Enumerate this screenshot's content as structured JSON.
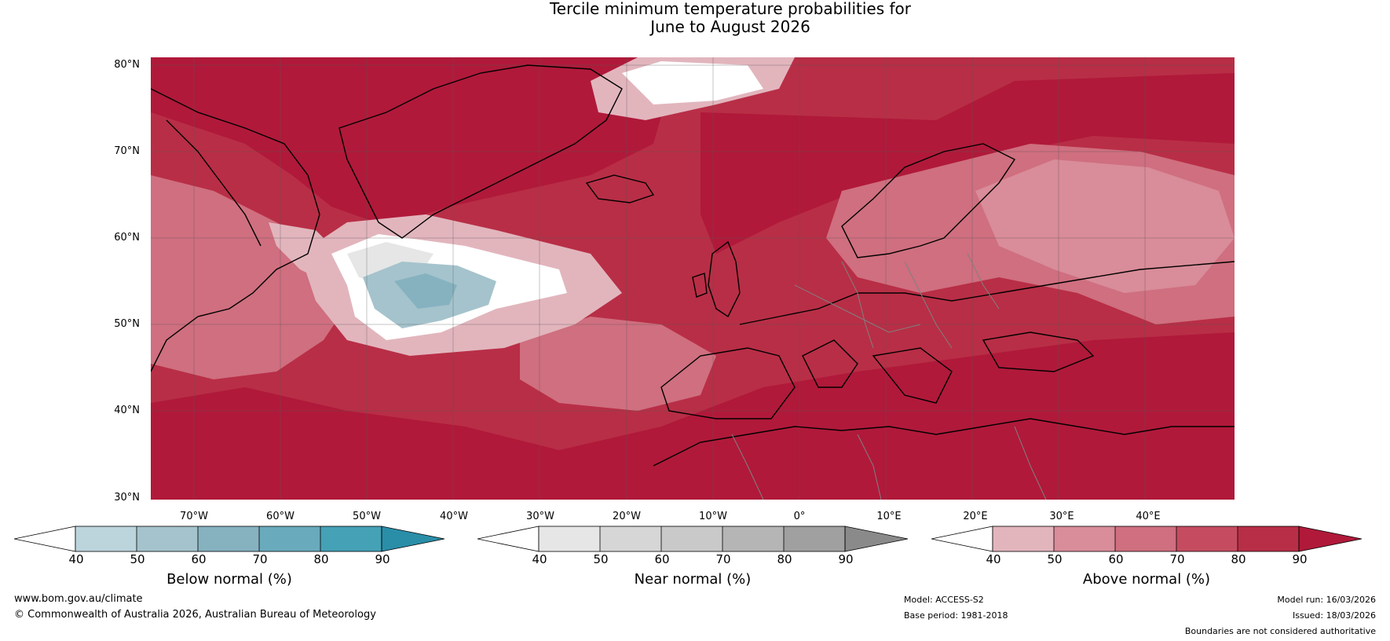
{
  "title": {
    "line1": "Tercile minimum temperature probabilities for",
    "line2": "June to August 2026"
  },
  "map": {
    "lat_labels": [
      "80°N",
      "70°N",
      "60°N",
      "50°N",
      "40°N",
      "30°N"
    ],
    "lon_labels": [
      "70°W",
      "60°W",
      "50°W",
      "40°W",
      "30°W",
      "20°W",
      "10°W",
      "0°",
      "10°E",
      "20°E",
      "30°E",
      "40°E"
    ],
    "colors": {
      "above": [
        "#e2b5bd",
        "#d98c99",
        "#cf6f7f",
        "#c54c60",
        "#b82e46",
        "#b0193a"
      ],
      "below": [
        "#bcd4dc",
        "#a5c3cc",
        "#86b2c0",
        "#69aabc",
        "#44a1b6",
        "#2a8ea8"
      ],
      "near": [
        "#e6e6e6",
        "#d6d6d6",
        "#c9c9c9",
        "#b5b5b5",
        "#a0a0a0",
        "#8a8a8a"
      ],
      "coastline": "#000000",
      "borders": "#808080"
    }
  },
  "colorbars": [
    {
      "id": "below",
      "label": "Below normal (%)",
      "ticks": [
        "40",
        "50",
        "60",
        "70",
        "80",
        "90"
      ],
      "colors": [
        "#bcd4dc",
        "#a5c3cc",
        "#86b2c0",
        "#69aabc",
        "#44a1b6",
        "#2a8ea8"
      ]
    },
    {
      "id": "near",
      "label": "Near normal (%)",
      "ticks": [
        "40",
        "50",
        "60",
        "70",
        "80",
        "90"
      ],
      "colors": [
        "#e6e6e6",
        "#d6d6d6",
        "#c9c9c9",
        "#b5b5b5",
        "#a0a0a0",
        "#8a8a8a"
      ]
    },
    {
      "id": "above",
      "label": "Above normal (%)",
      "ticks": [
        "40",
        "50",
        "60",
        "70",
        "80",
        "90"
      ],
      "colors": [
        "#e2b5bd",
        "#d98c99",
        "#cf6f7f",
        "#c54c60",
        "#b82e46",
        "#b0193a"
      ]
    }
  ],
  "footer": {
    "website": "www.bom.gov.au/climate",
    "copyright": "© Commonwealth of Australia 2026, Australian Bureau of Meteorology",
    "model": "Model: ACCESS-S2",
    "base_period": "Base period: 1981-2018",
    "model_run": "Model run: 16/03/2026",
    "issued": "Issued: 18/03/2026",
    "disclaimer": "Boundaries are not considered authoritative"
  }
}
